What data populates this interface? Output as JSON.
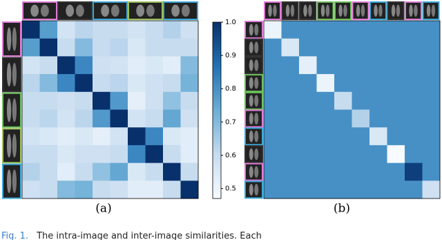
{
  "chart_data": [
    {
      "type": "heatmap",
      "label": "(a)",
      "values": [
        [
          1.0,
          0.77,
          0.57,
          0.62,
          0.6,
          0.6,
          0.57,
          0.6,
          0.63,
          0.58
        ],
        [
          0.77,
          1.0,
          0.6,
          0.7,
          0.6,
          0.62,
          0.55,
          0.6,
          0.6,
          0.6
        ],
        [
          0.57,
          0.6,
          1.0,
          0.82,
          0.58,
          0.57,
          0.53,
          0.55,
          0.53,
          0.7
        ],
        [
          0.62,
          0.7,
          0.82,
          1.0,
          0.6,
          0.62,
          0.55,
          0.58,
          0.6,
          0.72
        ],
        [
          0.6,
          0.6,
          0.58,
          0.6,
          1.0,
          0.78,
          0.52,
          0.58,
          0.68,
          0.6
        ],
        [
          0.6,
          0.62,
          0.57,
          0.62,
          0.78,
          1.0,
          0.57,
          0.6,
          0.75,
          0.58
        ],
        [
          0.57,
          0.55,
          0.53,
          0.55,
          0.52,
          0.57,
          1.0,
          0.82,
          0.55,
          0.53
        ],
        [
          0.6,
          0.6,
          0.55,
          0.58,
          0.58,
          0.6,
          0.82,
          1.0,
          0.6,
          0.53
        ],
        [
          0.63,
          0.6,
          0.53,
          0.6,
          0.68,
          0.75,
          0.55,
          0.6,
          1.0,
          0.6
        ],
        [
          0.58,
          0.6,
          0.7,
          0.72,
          0.6,
          0.58,
          0.53,
          0.53,
          0.6,
          1.0
        ]
      ],
      "zlim": [
        0.47,
        1.0
      ],
      "zticks": [
        {
          "value": 0.5,
          "label": "0.5"
        },
        {
          "value": 0.6,
          "label": "0.6"
        },
        {
          "value": 0.7,
          "label": "0.7"
        },
        {
          "value": 0.8,
          "label": "0.8"
        },
        {
          "value": 0.9,
          "label": "0.9"
        },
        {
          "value": 1.0,
          "label": "1.0"
        }
      ],
      "colormap": [
        "#f7fbff",
        "#c6dbef",
        "#6baed6",
        "#2171b5",
        "#08306b"
      ],
      "colorbar": true
    },
    {
      "type": "heatmap",
      "label": "(b)",
      "values": [
        [
          0.5,
          0.8,
          0.8,
          0.8,
          0.8,
          0.8,
          0.8,
          0.8,
          0.8,
          0.8
        ],
        [
          0.8,
          0.55,
          0.8,
          0.8,
          0.8,
          0.8,
          0.8,
          0.8,
          0.8,
          0.8
        ],
        [
          0.8,
          0.8,
          0.52,
          0.8,
          0.8,
          0.8,
          0.8,
          0.8,
          0.8,
          0.8
        ],
        [
          0.8,
          0.8,
          0.8,
          0.5,
          0.8,
          0.8,
          0.8,
          0.8,
          0.8,
          0.8
        ],
        [
          0.8,
          0.8,
          0.8,
          0.8,
          0.6,
          0.8,
          0.8,
          0.8,
          0.8,
          0.8
        ],
        [
          0.8,
          0.8,
          0.8,
          0.8,
          0.8,
          0.63,
          0.8,
          0.8,
          0.8,
          0.8
        ],
        [
          0.8,
          0.8,
          0.8,
          0.8,
          0.8,
          0.8,
          0.55,
          0.8,
          0.8,
          0.8
        ],
        [
          0.8,
          0.8,
          0.8,
          0.8,
          0.8,
          0.8,
          0.8,
          0.47,
          0.8,
          0.8
        ],
        [
          0.8,
          0.8,
          0.8,
          0.8,
          0.8,
          0.8,
          0.8,
          0.8,
          0.97,
          0.8
        ],
        [
          0.8,
          0.8,
          0.8,
          0.8,
          0.8,
          0.8,
          0.8,
          0.8,
          0.8,
          0.58
        ]
      ],
      "zlim": [
        0.47,
        1.0
      ],
      "colormap": [
        "#f7fbff",
        "#c6dbef",
        "#6baed6",
        "#2171b5",
        "#08306b"
      ],
      "colorbar": false
    }
  ],
  "caption": {
    "fig_label": "Fig. 1.",
    "text": "The intra-image and inter-image similarities. Each"
  }
}
